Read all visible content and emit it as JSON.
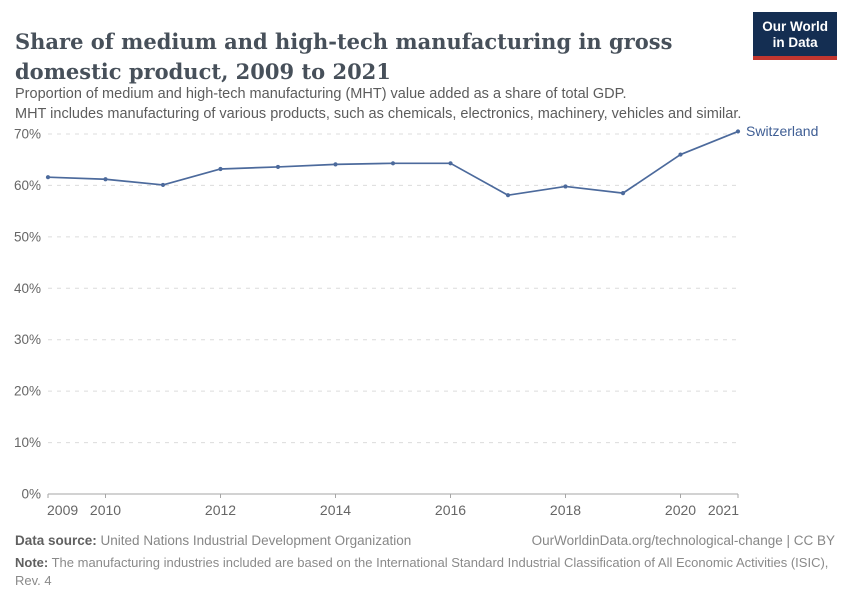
{
  "header": {
    "title": "Share of medium and high-tech manufacturing in gross domestic product, 2009 to 2021",
    "subtitle_line1": "Proportion of medium and high-tech manufacturing (MHT) value added as a share of total GDP.",
    "subtitle_line2": "MHT includes manufacturing of various products, such as chemicals, electronics, machinery, vehicles and similar.",
    "logo": {
      "line1": "Our World",
      "line2": "in Data",
      "bg_color": "#142e52",
      "accent_color": "#c2362f"
    }
  },
  "chart_data": {
    "type": "line",
    "title": "Share of medium and high-tech manufacturing in gross domestic product, 2009 to 2021",
    "xlabel": "",
    "ylabel": "",
    "xlim": [
      2009,
      2021
    ],
    "ylim": [
      0,
      70
    ],
    "yticks": [
      0,
      10,
      20,
      30,
      40,
      50,
      60,
      70
    ],
    "ytick_suffix": "%",
    "xticks": [
      2009,
      2010,
      2012,
      2014,
      2016,
      2018,
      2020,
      2021
    ],
    "grid": "horizontal dashed",
    "legend_position": "end-of-line label",
    "entity_label_color": "#3f5e94",
    "grid_color": "#dcdcdc",
    "axis_color": "#a6a6a6",
    "tick_label_color": "#666666",
    "series": [
      {
        "name": "Switzerland",
        "color": "#4c6a9c",
        "x": [
          2009,
          2010,
          2011,
          2012,
          2013,
          2014,
          2015,
          2016,
          2017,
          2018,
          2019,
          2020,
          2021
        ],
        "values": [
          61.6,
          61.2,
          60.1,
          63.2,
          63.6,
          64.1,
          64.3,
          64.3,
          58.1,
          59.8,
          58.5,
          66.0,
          70.5
        ]
      }
    ]
  },
  "footer": {
    "source_label": "Data source:",
    "source_value": "United Nations Industrial Development Organization",
    "attribution": "OurWorldinData.org/technological-change | CC BY",
    "note_label": "Note:",
    "note_value": "The manufacturing industries included are based on the International Standard Industrial Classification of All Economic Activities (ISIC), Rev. 4"
  }
}
